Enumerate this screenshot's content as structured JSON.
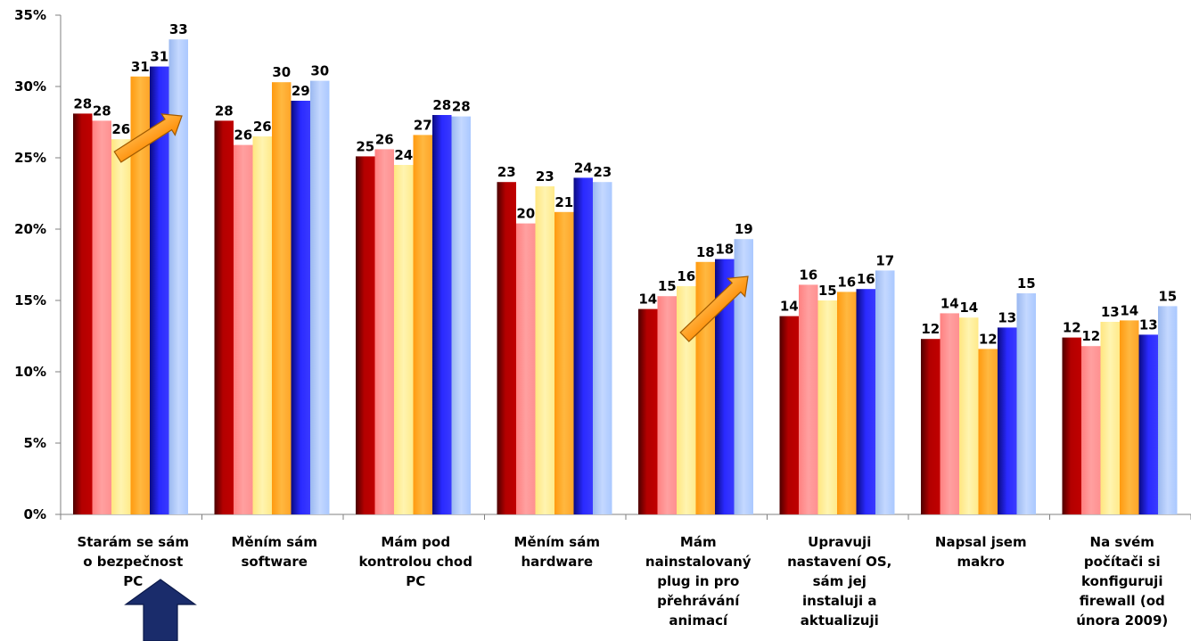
{
  "chart_data": {
    "type": "bar",
    "title": "",
    "xlabel": "",
    "ylabel": "",
    "ylim": [
      0,
      35
    ],
    "yticks": [
      "0%",
      "5%",
      "10%",
      "15%",
      "20%",
      "25%",
      "30%",
      "35%"
    ],
    "grid": false,
    "categories": [
      [
        "Starám se sám",
        "o bezpečnost",
        "PC"
      ],
      [
        "Měním sám",
        "software"
      ],
      [
        "Mám pod",
        "kontrolou chod",
        "PC"
      ],
      [
        "Měním sám",
        "hardware"
      ],
      [
        "Mám",
        "nainstalovaný",
        "plug in pro",
        "přehrávání",
        "animací"
      ],
      [
        "Upravuji",
        "nastavení OS,",
        "sám jej",
        "instaluji a",
        "aktualizuji"
      ],
      [
        "Napsal jsem",
        "makro"
      ],
      [
        "Na svém",
        "počítači si",
        "konfiguruji",
        "firewall (od",
        "února 2009)"
      ]
    ],
    "series_colors": [
      "#b30000",
      "#ff9494",
      "#ffef99",
      "#ffaa2b",
      "#2b2bff",
      "#aac8ff"
    ],
    "series": [
      {
        "values": [
          28.1,
          27.6,
          25.1,
          23.3,
          14.4,
          13.9,
          12.3,
          12.4
        ],
        "labels": [
          "28",
          "28",
          "25",
          "23",
          "14",
          "14",
          "12",
          "12"
        ]
      },
      {
        "values": [
          27.6,
          25.9,
          25.6,
          20.4,
          15.3,
          16.1,
          14.1,
          11.8
        ],
        "labels": [
          "28",
          "26",
          "26",
          "20",
          "15",
          "16",
          "14",
          "12"
        ]
      },
      {
        "values": [
          26.3,
          26.5,
          24.5,
          23.0,
          16.0,
          15.0,
          13.8,
          13.5
        ],
        "labels": [
          "26",
          "26",
          "24",
          "23",
          "16",
          "15",
          "14",
          "13"
        ]
      },
      {
        "values": [
          30.7,
          30.3,
          26.6,
          21.2,
          17.7,
          15.6,
          11.6,
          13.6
        ],
        "labels": [
          "31",
          "30",
          "27",
          "21",
          "18",
          "16",
          "12",
          "14"
        ]
      },
      {
        "values": [
          31.4,
          29.0,
          28.0,
          23.6,
          17.9,
          15.8,
          13.1,
          12.6
        ],
        "labels": [
          "31",
          "29",
          "28",
          "24",
          "18",
          "16",
          "13",
          "13"
        ]
      },
      {
        "values": [
          33.3,
          30.4,
          27.9,
          23.3,
          19.3,
          17.1,
          15.5,
          14.6
        ],
        "labels": [
          "33",
          "30",
          "28",
          "23",
          "19",
          "17",
          "15",
          "15"
        ]
      }
    ],
    "annotations": [
      {
        "type": "arrow",
        "color": "#ffa022",
        "category": 0,
        "direction": "up-right"
      },
      {
        "type": "arrow",
        "color": "#ffa022",
        "category": 4,
        "direction": "up-right"
      },
      {
        "type": "arrow",
        "color": "#1a2c6b",
        "category": 0,
        "direction": "up"
      }
    ]
  }
}
